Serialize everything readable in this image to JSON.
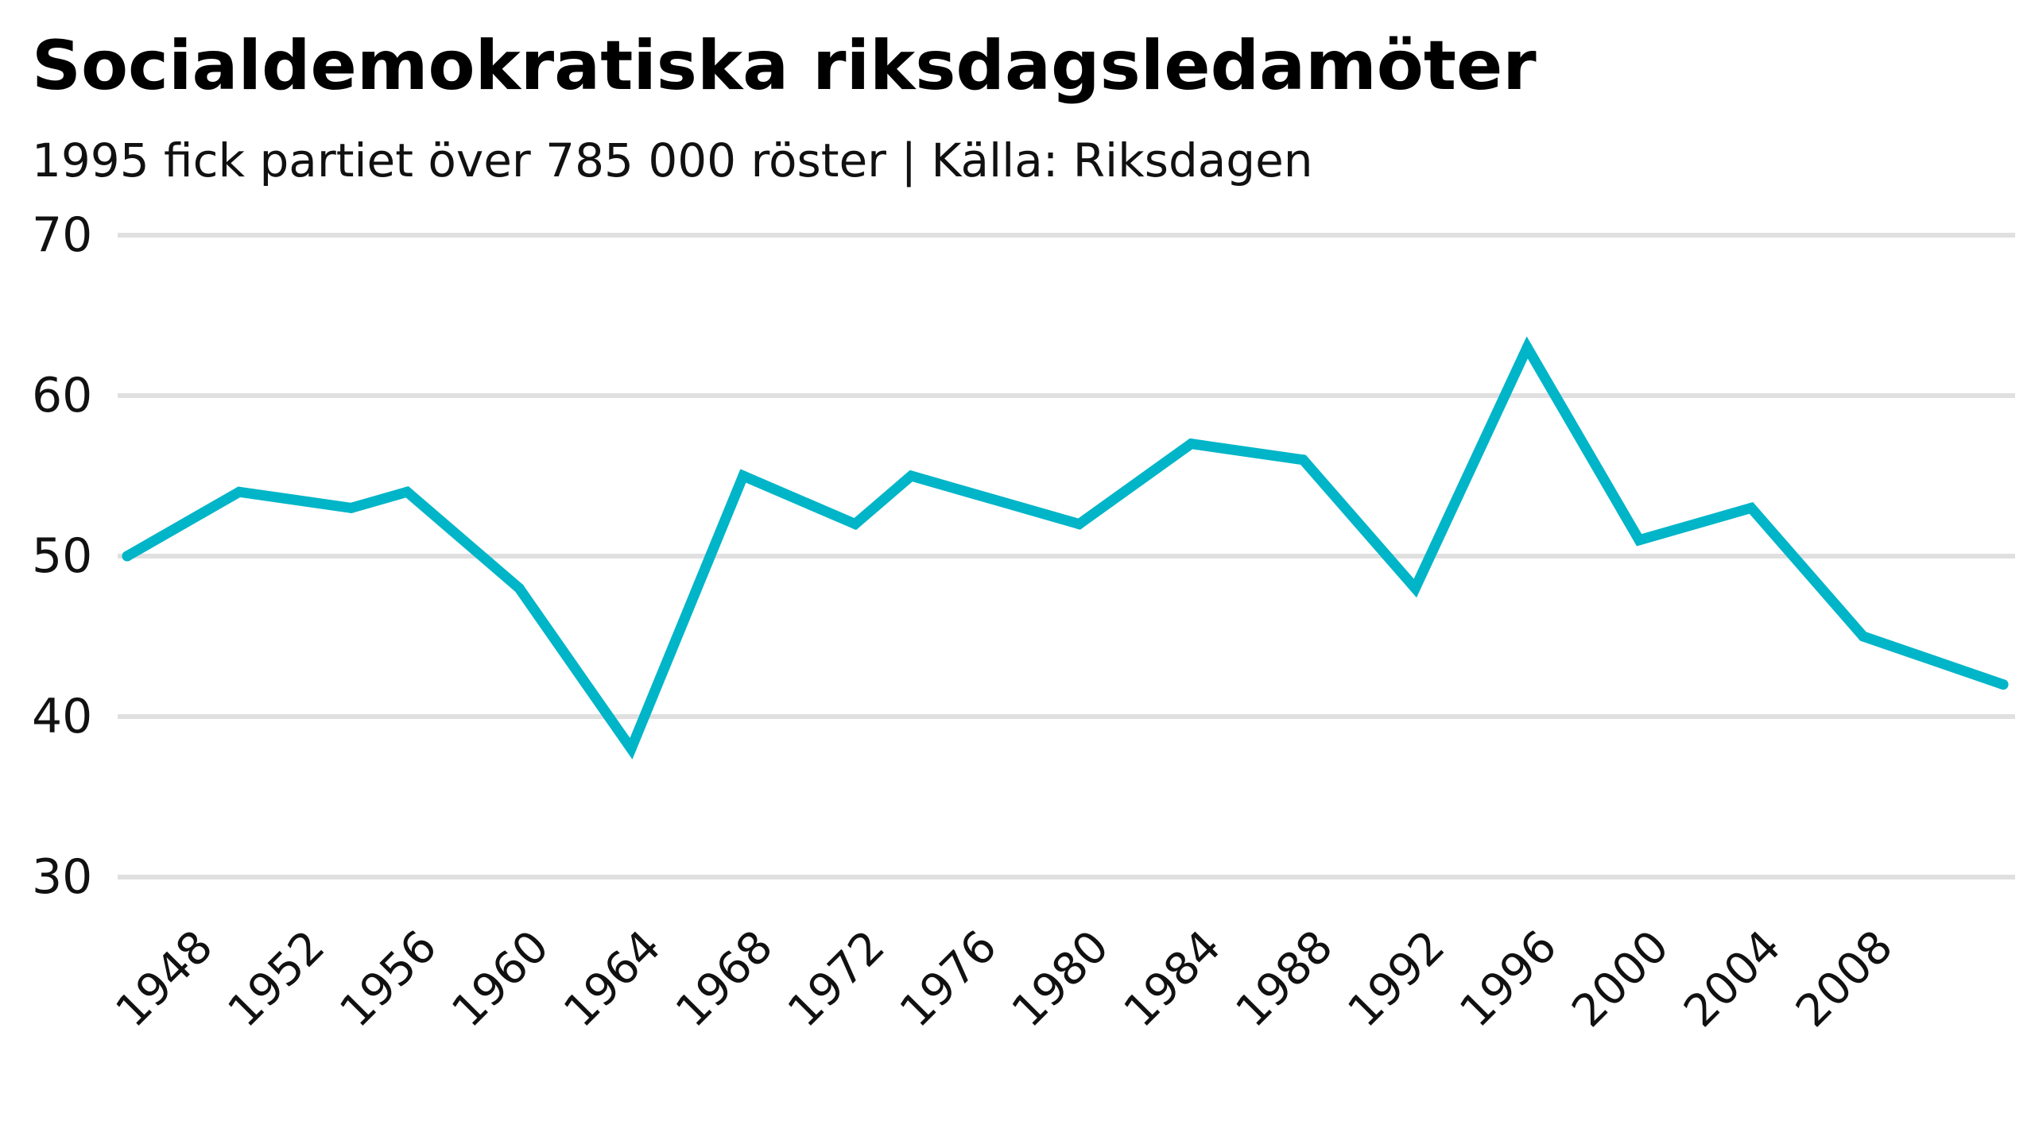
{
  "chart_data": {
    "type": "line",
    "title": "Socialdemokratiska riksdagsledamöter",
    "subtitle": "1995 fick partiet över 785 000 röster | Källa: Riksdagen",
    "xlabel": "",
    "ylabel": "",
    "ylim": [
      30,
      70
    ],
    "yticks": [
      30,
      40,
      50,
      60,
      70
    ],
    "xlim": [
      1946,
      2013
    ],
    "xticks": [
      1948,
      1952,
      1956,
      1960,
      1964,
      1968,
      1972,
      1976,
      1980,
      1984,
      1988,
      1992,
      1996,
      2000,
      2004,
      2008
    ],
    "grid": "horizontal",
    "legend": "none",
    "series": [
      {
        "color": "#00b5c8",
        "x": [
          1946,
          1950,
          1954,
          1956,
          1960,
          1964,
          1968,
          1972,
          1974,
          1976,
          1980,
          1984,
          1988,
          1992,
          1996,
          2000,
          2004,
          2008,
          2013
        ],
        "values": [
          50,
          54,
          53,
          54,
          48,
          38,
          55,
          52,
          55,
          54,
          52,
          57,
          56,
          48,
          63,
          51,
          53,
          45,
          42
        ]
      }
    ]
  }
}
